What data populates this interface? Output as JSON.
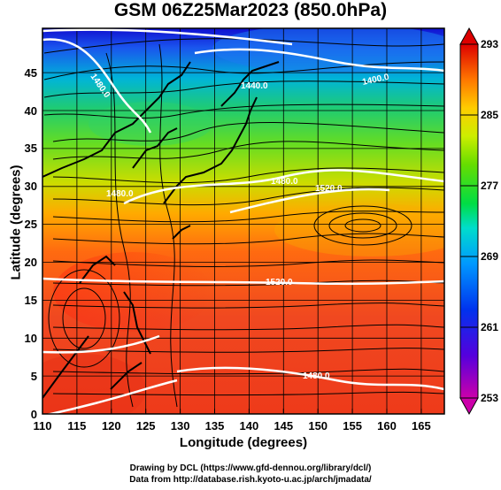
{
  "title": "GSM 06Z25Mar2023 (850.0hPa)",
  "x_axis": {
    "label": "Longitude (degrees)",
    "ticks": [
      "110",
      "115",
      "120",
      "125",
      "130",
      "135",
      "140",
      "145",
      "150",
      "155",
      "160",
      "165"
    ]
  },
  "y_axis": {
    "label": "Latitude (degrees)",
    "ticks": [
      "0",
      "5",
      "10",
      "15",
      "20",
      "25",
      "30",
      "35",
      "40",
      "45"
    ]
  },
  "colorbar": {
    "ticks": [
      "253",
      "261",
      "269",
      "277",
      "285",
      "293"
    ],
    "range": [
      253,
      293
    ],
    "colors": [
      "#cc00aa",
      "#4400dd",
      "#0033ee",
      "#0099ff",
      "#00ddcc",
      "#00dd44",
      "#55dd00",
      "#ccee00",
      "#ffcc00",
      "#ff7700",
      "#ee3311",
      "#dd0000"
    ]
  },
  "contour_labels": [
    "1480.0",
    "1440.0",
    "1400.0",
    "1520.0",
    "1480.0",
    "1480.0",
    "1520.0",
    "1480.0"
  ],
  "credits": {
    "line1": "Drawing by DCL (https://www.gfd-dennou.org/library/dcl/)",
    "line2": "Data from http://database.rish.kyoto-u.ac.jp/arch/jmadata/"
  }
}
